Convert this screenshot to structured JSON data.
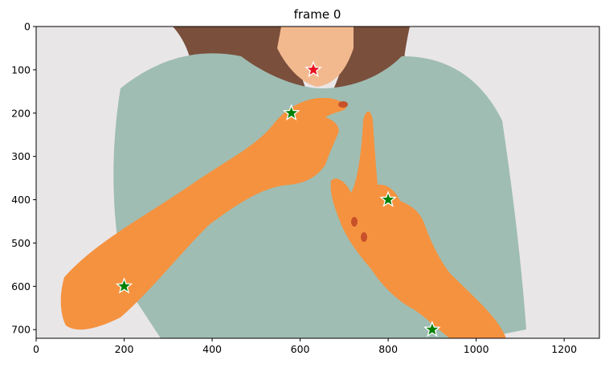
{
  "chart_data": {
    "type": "scatter",
    "title": "frame 0",
    "xlim": [
      0,
      1280
    ],
    "ylim": [
      720,
      0
    ],
    "xticks": [
      0,
      200,
      400,
      600,
      800,
      1000,
      1200
    ],
    "yticks": [
      0,
      100,
      200,
      300,
      400,
      500,
      600,
      700
    ],
    "grid": false,
    "series": [
      {
        "marker": "star",
        "color": "#008000",
        "points": [
          {
            "x": 200,
            "y": 600
          },
          {
            "x": 580,
            "y": 200
          },
          {
            "x": 800,
            "y": 400
          },
          {
            "x": 900,
            "y": 700
          }
        ]
      },
      {
        "marker": "star",
        "color": "#e8101e",
        "points": [
          {
            "x": 630,
            "y": 100
          }
        ]
      }
    ],
    "image": {
      "background_color": "#e9e6e8",
      "shirt_color": "#9fbdb3",
      "hair_color": "#7a4f3b",
      "skin_color": "#f2b98f",
      "mask_color": "#f5923f"
    }
  }
}
